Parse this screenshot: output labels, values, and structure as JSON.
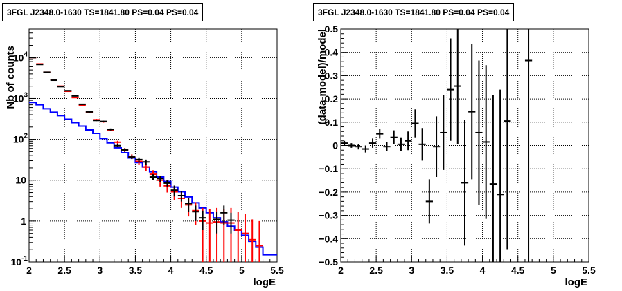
{
  "chart_data": [
    {
      "type": "scatter",
      "title": "3FGL J2348.0-1630 TS=1841.80 PS=0.04 PS=0.04",
      "xlabel": "logE",
      "ylabel": "Nb of counts",
      "xlim": [
        2,
        5.5
      ],
      "ylim": [
        0.1,
        50000
      ],
      "yscale": "log",
      "grid": true,
      "x_ticks": [
        "2",
        "2.5",
        "3",
        "3.5",
        "4",
        "4.5",
        "5",
        "5.5"
      ],
      "y_ticks": [
        {
          "value": 0.1,
          "base": "10",
          "exp": "-1"
        },
        {
          "value": 1,
          "base": "1",
          "exp": ""
        },
        {
          "value": 10,
          "base": "10",
          "exp": ""
        },
        {
          "value": 100,
          "base": "10",
          "exp": "2"
        },
        {
          "value": 1000,
          "base": "10",
          "exp": "3"
        },
        {
          "value": 10000,
          "base": "10",
          "exp": "4"
        }
      ],
      "colors": {
        "data": "#000000",
        "model_points": "#ff0000",
        "model_line": "#0000ff"
      },
      "series": [
        {
          "role": "data",
          "x": [
            2.05,
            2.15,
            2.25,
            2.35,
            2.45,
            2.55,
            2.65,
            2.75,
            2.85,
            2.95,
            3.05,
            3.15,
            3.25,
            3.35,
            3.45,
            3.55,
            3.65,
            3.75,
            3.85,
            3.95,
            4.05,
            4.15,
            4.25,
            4.35,
            4.45,
            4.55,
            4.65,
            4.75,
            4.85,
            4.95,
            5.05,
            5.15,
            5.25
          ],
          "y": [
            10000,
            6800,
            4400,
            2800,
            1950,
            1550,
            1150,
            720,
            470,
            290,
            275,
            175,
            70,
            55,
            37,
            32,
            28,
            12,
            11,
            8.5,
            5.7,
            4.2,
            2.7,
            1.7,
            1.2,
            0,
            1.1,
            1.6,
            1.05,
            0,
            0,
            0,
            0
          ],
          "ylow": [
            9900,
            6720,
            4340,
            2750,
            1910,
            1510,
            1120,
            700,
            450,
            280,
            265,
            165,
            65,
            50,
            33,
            28,
            24,
            10,
            9,
            7,
            4,
            3,
            1.7,
            1,
            0.6,
            0,
            0.5,
            0.8,
            0.5,
            0,
            0,
            0,
            0
          ],
          "yhigh": [
            10100,
            6880,
            4460,
            2850,
            1990,
            1590,
            1180,
            740,
            490,
            300,
            285,
            185,
            75,
            60,
            41,
            36,
            32,
            14,
            13,
            10,
            7.4,
            5.4,
            3.7,
            2.4,
            1.8,
            0,
            1.7,
            2.4,
            1.6,
            0,
            0,
            0,
            0
          ]
        },
        {
          "role": "model_points",
          "x": [
            2.05,
            2.15,
            2.25,
            2.35,
            2.45,
            2.55,
            2.65,
            2.75,
            2.85,
            2.95,
            3.05,
            3.15,
            3.25,
            3.35,
            3.45,
            3.55,
            3.65,
            3.75,
            3.85,
            3.95,
            4.05,
            4.15,
            4.25,
            4.35,
            4.45,
            4.55,
            4.65,
            4.75,
            4.85,
            4.95,
            5.05,
            5.15,
            5.25
          ],
          "y": [
            10000,
            7000,
            4400,
            2900,
            2000,
            1500,
            1050,
            680,
            460,
            300,
            270,
            170,
            85,
            55,
            38,
            29,
            21,
            14,
            10,
            7.3,
            5.2,
            3.6,
            2.5,
            1.8,
            1.0,
            0.9,
            0.95,
            0.9,
            0.9,
            0.6,
            0.5,
            0.35,
            0.25
          ],
          "ylow": [
            9900,
            6920,
            4340,
            2850,
            1960,
            1460,
            1020,
            660,
            440,
            285,
            255,
            160,
            78,
            49,
            33,
            24,
            17,
            10.5,
            7,
            5,
            3.3,
            2.1,
            1.3,
            0.8,
            0.1,
            0.1,
            0.1,
            0.1,
            0.1,
            0.1,
            0.1,
            0.1,
            0.1
          ],
          "yhigh": [
            10100,
            7080,
            4460,
            2950,
            2040,
            1540,
            1080,
            700,
            480,
            315,
            285,
            180,
            92,
            61,
            43,
            34,
            25,
            17.5,
            13,
            9.6,
            7.1,
            5.1,
            3.7,
            2.9,
            2.1,
            2.0,
            2.1,
            2.0,
            2.1,
            1.7,
            1.5,
            1.1,
            1.0
          ]
        },
        {
          "role": "model_line",
          "x": [
            2.0,
            2.1,
            2.2,
            2.3,
            2.4,
            2.5,
            2.6,
            2.7,
            2.8,
            2.9,
            3.0,
            3.1,
            3.2,
            3.3,
            3.4,
            3.5,
            3.6,
            3.7,
            3.8,
            3.9,
            4.0,
            4.1,
            4.2,
            4.3,
            4.4,
            4.5,
            4.6,
            4.7,
            4.8,
            4.9,
            5.0,
            5.1,
            5.2,
            5.3,
            5.5
          ],
          "y": [
            800,
            700,
            560,
            460,
            380,
            310,
            255,
            210,
            170,
            140,
            105,
            82,
            62,
            47,
            35,
            27,
            21,
            16,
            12,
            9.3,
            6.8,
            5.2,
            3.9,
            2.8,
            2.1,
            1.6,
            1.2,
            0.95,
            0.75,
            0.6,
            0.45,
            0.32,
            0.23,
            0.15,
            0.12
          ]
        }
      ]
    },
    {
      "type": "scatter",
      "title": "3FGL J2348.0-1630 TS=1841.80 PS=0.04 PS=0.04",
      "xlabel": "logE",
      "ylabel": "(data-model)/model",
      "xlim": [
        2,
        5.5
      ],
      "ylim": [
        -0.5,
        0.5
      ],
      "grid": true,
      "x_ticks": [
        "2",
        "2.5",
        "3",
        "3.5",
        "4",
        "4.5",
        "5",
        "5.5"
      ],
      "y_ticks": [
        "−0.5",
        "−0.4",
        "−0.3",
        "−0.2",
        "−0.1",
        "0",
        "0.1",
        "0.2",
        "0.3",
        "0.4",
        "0.5"
      ],
      "y_tick_values": [
        -0.5,
        -0.4,
        -0.3,
        -0.2,
        -0.1,
        0,
        0.1,
        0.2,
        0.3,
        0.4,
        0.5
      ],
      "colors": {
        "data": "#000000"
      },
      "series": [
        {
          "role": "residuals",
          "x": [
            2.05,
            2.15,
            2.25,
            2.35,
            2.45,
            2.55,
            2.65,
            2.75,
            2.85,
            2.95,
            3.05,
            3.15,
            3.25,
            3.35,
            3.45,
            3.55,
            3.65,
            3.75,
            3.85,
            3.95,
            4.05,
            4.15,
            4.25,
            4.35,
            4.65
          ],
          "y": [
            0.01,
            0.0,
            -0.005,
            -0.015,
            0.01,
            0.05,
            -0.005,
            0.035,
            0.005,
            0.02,
            0.095,
            0.005,
            -0.24,
            -0.005,
            0.055,
            0.24,
            0.255,
            -0.16,
            0.145,
            0.055,
            0.015,
            -0.165,
            -0.21,
            0.105,
            0.365
          ],
          "yerr": [
            0.01,
            0.01,
            0.012,
            0.015,
            0.02,
            0.02,
            0.02,
            0.03,
            0.03,
            0.04,
            0.06,
            0.07,
            0.095,
            0.13,
            0.16,
            0.22,
            0.25,
            0.27,
            0.29,
            0.31,
            0.33,
            0.38,
            0.45,
            0.55,
            0.9
          ]
        }
      ]
    }
  ]
}
